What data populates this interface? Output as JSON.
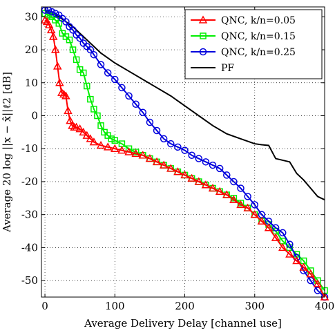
{
  "chart_data": {
    "type": "line",
    "title": "",
    "xlabel": "Average Delivery Delay [channel use]",
    "ylabel": "Average 20 log ||x − x̂||ℓ2 [dB]",
    "xlim": [
      -5,
      400
    ],
    "ylim": [
      -55,
      33
    ],
    "xticks": [
      0,
      100,
      200,
      300,
      400
    ],
    "yticks": [
      -50,
      -40,
      -30,
      -20,
      -10,
      0,
      10,
      20,
      30
    ],
    "grid": true,
    "legend_position": "top-right",
    "series": [
      {
        "name": "QNC, k/n=0.05",
        "color": "#ff0000",
        "marker": "triangle",
        "x": [
          0,
          3,
          6,
          9,
          12,
          15,
          18,
          21,
          24,
          27,
          30,
          33,
          36,
          39,
          42,
          45,
          50,
          55,
          60,
          65,
          70,
          80,
          90,
          100,
          110,
          120,
          130,
          140,
          150,
          160,
          170,
          180,
          190,
          200,
          210,
          220,
          230,
          240,
          250,
          260,
          270,
          280,
          290,
          300,
          310,
          320,
          330,
          340,
          350,
          360,
          370,
          380,
          390,
          400
        ],
        "y": [
          29,
          28.5,
          27.5,
          26,
          24,
          20,
          15,
          10,
          7,
          6.5,
          6,
          1.5,
          -1.5,
          -3,
          -3.5,
          -3.5,
          -4,
          -5,
          -6,
          -7,
          -8,
          -9,
          -9.5,
          -10,
          -10.5,
          -11,
          -11.5,
          -12,
          -13,
          -14,
          -15,
          -16,
          -17,
          -18,
          -19,
          -20,
          -21,
          -22,
          -23,
          -24,
          -25.5,
          -27,
          -28,
          -30,
          -32,
          -34,
          -37,
          -40,
          -42,
          -44,
          -46,
          -48,
          -51,
          -55
        ]
      },
      {
        "name": "QNC, k/n=0.15",
        "color": "#00ee00",
        "marker": "square",
        "x": [
          0,
          5,
          10,
          15,
          20,
          25,
          30,
          35,
          40,
          45,
          50,
          55,
          60,
          65,
          70,
          75,
          80,
          85,
          90,
          95,
          100,
          110,
          120,
          130,
          140,
          150,
          160,
          170,
          180,
          190,
          200,
          210,
          220,
          230,
          240,
          250,
          260,
          270,
          280,
          290,
          300,
          310,
          320,
          330,
          340,
          350,
          360,
          370,
          380,
          390,
          400
        ],
        "y": [
          31,
          30.5,
          30,
          29,
          28,
          25,
          24,
          23,
          20,
          17,
          14,
          13,
          9,
          5,
          2,
          0,
          -3,
          -5,
          -6,
          -7,
          -7.5,
          -8.5,
          -10,
          -11,
          -12,
          -13,
          -14,
          -15,
          -16,
          -17,
          -18,
          -19,
          -20,
          -21,
          -22,
          -23,
          -24,
          -25,
          -26.5,
          -28,
          -30,
          -32,
          -33,
          -35,
          -38,
          -40,
          -42,
          -44,
          -47,
          -50,
          -53
        ]
      },
      {
        "name": "QNC, k/n=0.25",
        "color": "#0000dd",
        "marker": "circle",
        "x": [
          0,
          5,
          10,
          15,
          20,
          25,
          30,
          35,
          40,
          45,
          50,
          55,
          60,
          65,
          70,
          80,
          90,
          100,
          110,
          120,
          130,
          140,
          150,
          160,
          170,
          180,
          190,
          200,
          210,
          220,
          230,
          240,
          250,
          260,
          270,
          280,
          290,
          300,
          310,
          320,
          330,
          340,
          350,
          360,
          370,
          380,
          390,
          400
        ],
        "y": [
          32,
          32,
          31.5,
          31,
          30.5,
          29.5,
          28.5,
          27,
          26,
          24.5,
          23.5,
          22,
          21,
          20,
          18.5,
          15.5,
          13,
          11,
          8.5,
          6,
          3.5,
          1,
          -2,
          -4.5,
          -7,
          -8.5,
          -9.5,
          -10.5,
          -12,
          -13,
          -14,
          -15,
          -16,
          -18,
          -20,
          -22,
          -24.5,
          -27,
          -30,
          -32,
          -34,
          -35.5,
          -39,
          -43,
          -47,
          -50,
          -53,
          -55
        ]
      },
      {
        "name": "PF",
        "color": "#000000",
        "marker": "none",
        "x": [
          0,
          10,
          20,
          30,
          40,
          50,
          60,
          70,
          80,
          90,
          100,
          120,
          140,
          160,
          180,
          200,
          220,
          240,
          260,
          280,
          300,
          310,
          320,
          330,
          340,
          350,
          360,
          370,
          380,
          390,
          400
        ],
        "y": [
          32,
          31,
          30,
          28.5,
          27,
          25,
          23,
          21,
          19,
          17.5,
          16,
          13.5,
          11,
          8.5,
          6,
          3,
          0,
          -3,
          -5.5,
          -7,
          -8.5,
          -8.8,
          -9,
          -13,
          -13.5,
          -14,
          -17.5,
          -19.5,
          -22,
          -24.5,
          -25.5
        ]
      }
    ]
  }
}
